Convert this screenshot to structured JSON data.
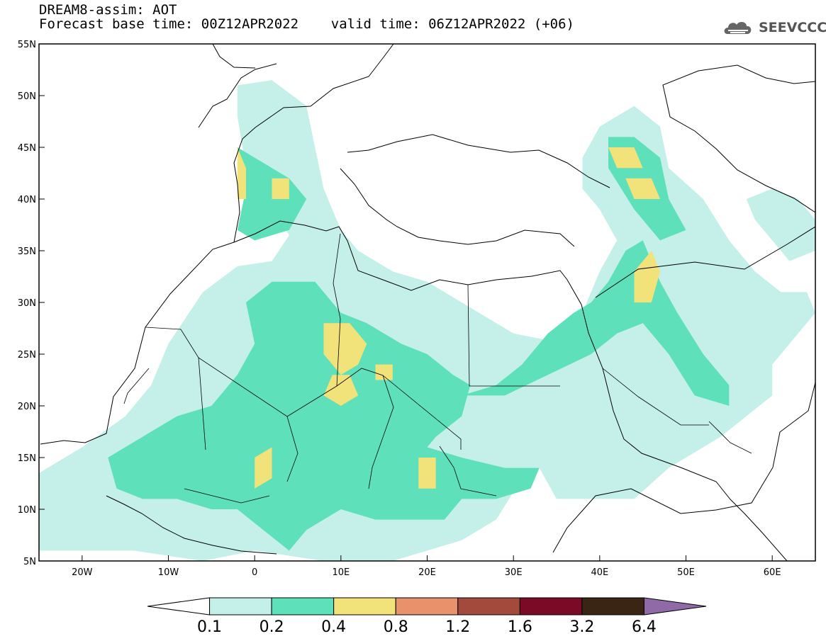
{
  "title": {
    "line1": "DREAM8-assim: AOT",
    "line2": "Forecast base time: 00Z12APR2022    valid time: 06Z12APR2022 (+06)"
  },
  "logo": {
    "text": "SEEVCCC",
    "icon": "cloud-icon"
  },
  "axes": {
    "lon_min": -25,
    "lon_max": 65,
    "lat_min": 5,
    "lat_max": 55,
    "x_ticks": [
      {
        "lon": -20,
        "label": "20W"
      },
      {
        "lon": -10,
        "label": "10W"
      },
      {
        "lon": 0,
        "label": "0"
      },
      {
        "lon": 10,
        "label": "10E"
      },
      {
        "lon": 20,
        "label": "20E"
      },
      {
        "lon": 30,
        "label": "30E"
      },
      {
        "lon": 40,
        "label": "40E"
      },
      {
        "lon": 50,
        "label": "50E"
      },
      {
        "lon": 60,
        "label": "60E"
      }
    ],
    "y_ticks": [
      {
        "lat": 55,
        "label": "55N"
      },
      {
        "lat": 50,
        "label": "50N"
      },
      {
        "lat": 45,
        "label": "45N"
      },
      {
        "lat": 40,
        "label": "40N"
      },
      {
        "lat": 35,
        "label": "35N"
      },
      {
        "lat": 30,
        "label": "30N"
      },
      {
        "lat": 25,
        "label": "25N"
      },
      {
        "lat": 20,
        "label": "20N"
      },
      {
        "lat": 15,
        "label": "15N"
      },
      {
        "lat": 10,
        "label": "10N"
      },
      {
        "lat": 5,
        "label": "5N"
      }
    ]
  },
  "colorbar": {
    "boundaries": [
      "0.1",
      "0.2",
      "0.4",
      "0.8",
      "1.2",
      "1.6",
      "3.2",
      "6.4"
    ],
    "colors": [
      "#ffffff",
      "#c4f0e9",
      "#5ee0ba",
      "#f2e27a",
      "#e8916a",
      "#a34a3c",
      "#7a0a26",
      "#3a2414",
      "#8f6aa6"
    ]
  },
  "fields": {
    "level_colors": {
      "0.1": "#c4f0e9",
      "0.2": "#5ee0ba",
      "0.4": "#f2e27a"
    },
    "regions": [
      {
        "level": "0.1",
        "points": [
          [
            -25,
            13.5
          ],
          [
            -20,
            16
          ],
          [
            -15,
            19
          ],
          [
            -12,
            22
          ],
          [
            -10,
            26
          ],
          [
            -6,
            31
          ],
          [
            -2,
            33.5
          ],
          [
            2,
            34
          ],
          [
            4,
            36.5
          ],
          [
            2,
            39
          ],
          [
            -1,
            43
          ],
          [
            -2,
            48
          ],
          [
            -2,
            51
          ],
          [
            2,
            51.5
          ],
          [
            6,
            49
          ],
          [
            7,
            45
          ],
          [
            8,
            41
          ],
          [
            10,
            37
          ],
          [
            12,
            35
          ],
          [
            16,
            33
          ],
          [
            20,
            32
          ],
          [
            24,
            30
          ],
          [
            30,
            27
          ],
          [
            36,
            26
          ],
          [
            38,
            29
          ],
          [
            40,
            33
          ],
          [
            42,
            36
          ],
          [
            40,
            39
          ],
          [
            38,
            41
          ],
          [
            38,
            44
          ],
          [
            40,
            47
          ],
          [
            44,
            49
          ],
          [
            47,
            47
          ],
          [
            48,
            43
          ],
          [
            52,
            40
          ],
          [
            55,
            36
          ],
          [
            58,
            33
          ],
          [
            61,
            31
          ],
          [
            64,
            31
          ],
          [
            65,
            29
          ],
          [
            63,
            27
          ],
          [
            60,
            24
          ],
          [
            60,
            21
          ],
          [
            57,
            19
          ],
          [
            54,
            17
          ],
          [
            48,
            14
          ],
          [
            44,
            11
          ],
          [
            39,
            11
          ],
          [
            35,
            11
          ],
          [
            33,
            14
          ],
          [
            31,
            13
          ],
          [
            28,
            9
          ],
          [
            24,
            7
          ],
          [
            20,
            6
          ],
          [
            16,
            5
          ],
          [
            8,
            5
          ],
          [
            0,
            6
          ],
          [
            -6,
            5
          ],
          [
            -14,
            6
          ],
          [
            -20,
            6
          ],
          [
            -25,
            6
          ]
        ]
      },
      {
        "level": "0.1",
        "points": [
          [
            57,
            40
          ],
          [
            60,
            41
          ],
          [
            63,
            40
          ],
          [
            65,
            38
          ],
          [
            65,
            35
          ],
          [
            62,
            34
          ],
          [
            60,
            36
          ],
          [
            58,
            38
          ]
        ]
      },
      {
        "level": "0.2",
        "points": [
          [
            -17,
            15
          ],
          [
            -13,
            17
          ],
          [
            -9,
            19
          ],
          [
            -5,
            20
          ],
          [
            -2,
            23
          ],
          [
            0,
            26
          ],
          [
            -1,
            30
          ],
          [
            2,
            32
          ],
          [
            7,
            32
          ],
          [
            10,
            29
          ],
          [
            13,
            28
          ],
          [
            17,
            26
          ],
          [
            20,
            25
          ],
          [
            23,
            23
          ],
          [
            25,
            22
          ],
          [
            24,
            19
          ],
          [
            21,
            17
          ],
          [
            20,
            16
          ],
          [
            24,
            15
          ],
          [
            29,
            14
          ],
          [
            33,
            14
          ],
          [
            32,
            12
          ],
          [
            28,
            11
          ],
          [
            24,
            11
          ],
          [
            22,
            9
          ],
          [
            18,
            9
          ],
          [
            14,
            9
          ],
          [
            10,
            10
          ],
          [
            6,
            8
          ],
          [
            4,
            6
          ],
          [
            1,
            8
          ],
          [
            -2,
            10
          ],
          [
            -5,
            10
          ],
          [
            -9,
            11
          ],
          [
            -13,
            11
          ],
          [
            -16,
            12
          ]
        ]
      },
      {
        "level": "0.2",
        "points": [
          [
            24,
            21
          ],
          [
            28,
            22
          ],
          [
            31,
            24
          ],
          [
            34,
            27
          ],
          [
            37,
            29
          ],
          [
            39,
            30
          ],
          [
            41,
            32
          ],
          [
            43,
            35
          ],
          [
            45,
            36
          ],
          [
            47,
            32
          ],
          [
            49,
            29
          ],
          [
            52,
            25
          ],
          [
            55,
            22
          ],
          [
            55,
            20
          ],
          [
            51,
            21
          ],
          [
            48,
            25
          ],
          [
            45,
            28
          ],
          [
            42,
            27
          ],
          [
            39,
            25
          ],
          [
            34,
            23
          ],
          [
            29,
            21
          ]
        ]
      },
      {
        "level": "0.2",
        "points": [
          [
            -2,
            45
          ],
          [
            -1,
            41
          ],
          [
            -2,
            37
          ],
          [
            0,
            36
          ],
          [
            4,
            37
          ],
          [
            6,
            40
          ],
          [
            4,
            42
          ],
          [
            0,
            44
          ]
        ]
      },
      {
        "level": "0.2",
        "points": [
          [
            41,
            46
          ],
          [
            44,
            46
          ],
          [
            47,
            44
          ],
          [
            48,
            40
          ],
          [
            50,
            37
          ],
          [
            47,
            36
          ],
          [
            44,
            39
          ],
          [
            41,
            43
          ]
        ]
      },
      {
        "level": "0.4",
        "points": [
          [
            8,
            28
          ],
          [
            11,
            28
          ],
          [
            13,
            26
          ],
          [
            12,
            24
          ],
          [
            10,
            23
          ],
          [
            8,
            25
          ]
        ]
      },
      {
        "level": "0.4",
        "points": [
          [
            9,
            23
          ],
          [
            11,
            23
          ],
          [
            12,
            21
          ],
          [
            10,
            20
          ],
          [
            8,
            21
          ]
        ]
      },
      {
        "level": "0.4",
        "points": [
          [
            14,
            24
          ],
          [
            16,
            24
          ],
          [
            16,
            22.5
          ],
          [
            14,
            22.5
          ]
        ]
      },
      {
        "level": "0.4",
        "points": [
          [
            0,
            15
          ],
          [
            2,
            16
          ],
          [
            2,
            13
          ],
          [
            0,
            12
          ]
        ]
      },
      {
        "level": "0.4",
        "points": [
          [
            19,
            15
          ],
          [
            21,
            15
          ],
          [
            21,
            12
          ],
          [
            19,
            12
          ]
        ]
      },
      {
        "level": "0.4",
        "points": [
          [
            -2,
            45
          ],
          [
            -1,
            43
          ],
          [
            -1,
            40
          ],
          [
            -2,
            40
          ],
          [
            -2,
            43
          ]
        ]
      },
      {
        "level": "0.4",
        "points": [
          [
            2,
            42
          ],
          [
            4,
            42
          ],
          [
            4,
            40
          ],
          [
            2,
            40
          ]
        ]
      },
      {
        "level": "0.4",
        "points": [
          [
            44,
            33
          ],
          [
            46,
            35
          ],
          [
            47,
            33
          ],
          [
            46,
            30
          ],
          [
            44,
            30
          ]
        ]
      },
      {
        "level": "0.4",
        "points": [
          [
            41,
            45
          ],
          [
            44,
            45
          ],
          [
            45,
            43
          ],
          [
            42,
            43
          ]
        ]
      },
      {
        "level": "0.4",
        "points": [
          [
            43,
            42
          ],
          [
            46,
            42
          ],
          [
            47,
            40
          ],
          [
            44,
            40
          ]
        ]
      }
    ]
  }
}
